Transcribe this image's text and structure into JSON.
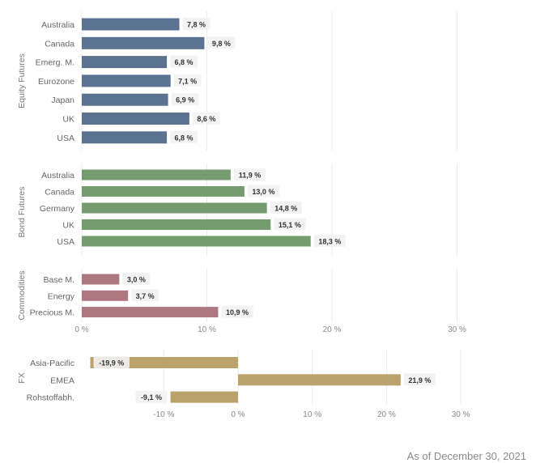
{
  "footnote": "As of December 30, 2021",
  "chart_data": [
    {
      "type": "bar",
      "orientation": "horizontal",
      "group_label": "Equity Futures",
      "color": "#5b7291",
      "categories": [
        "Australia",
        "Canada",
        "Emerg. M.",
        "Eurozone",
        "Japan",
        "UK",
        "USA"
      ],
      "values": [
        7.8,
        9.8,
        6.8,
        7.1,
        6.9,
        8.6,
        6.8
      ],
      "value_labels": [
        "7,8 %",
        "9,8 %",
        "6,8 %",
        "7,1 %",
        "6,9 %",
        "8,6 %",
        "6,8 %"
      ],
      "xlim": [
        0,
        30
      ],
      "grid": true
    },
    {
      "type": "bar",
      "orientation": "horizontal",
      "group_label": "Bond Futures",
      "color": "#759c6e",
      "categories": [
        "Australia",
        "Canada",
        "Germany",
        "UK",
        "USA"
      ],
      "values": [
        11.9,
        13.0,
        14.8,
        15.1,
        18.3
      ],
      "value_labels": [
        "11,9 %",
        "13,0 %",
        "14,8 %",
        "15,1 %",
        "18,3 %"
      ],
      "xlim": [
        0,
        30
      ],
      "grid": true
    },
    {
      "type": "bar",
      "orientation": "horizontal",
      "group_label": "Commodities",
      "color": "#ad7880",
      "categories": [
        "Base M.",
        "Energy",
        "Precious M."
      ],
      "values": [
        3.0,
        3.7,
        10.9
      ],
      "value_labels": [
        "3,0 %",
        "3,7 %",
        "10,9 %"
      ],
      "xlim": [
        0,
        30
      ],
      "xticks": [
        0,
        10,
        20,
        30
      ],
      "xtick_labels": [
        "0 %",
        "10 %",
        "20 %",
        "30 %"
      ],
      "grid": true
    },
    {
      "type": "bar",
      "orientation": "horizontal",
      "group_label": "FX",
      "color": "#bba26d",
      "categories": [
        "Asia-Pacific",
        "EMEA",
        "Rohstoffabh."
      ],
      "values": [
        -19.9,
        21.9,
        -9.1
      ],
      "value_labels": [
        "-19,9 %",
        "21,9 %",
        "-9,1 %"
      ],
      "xlim": [
        -20,
        30
      ],
      "xticks": [
        -10,
        0,
        10,
        20,
        30
      ],
      "xtick_labels": [
        "-10 %",
        "0 %",
        "10 %",
        "20 %",
        "30 %"
      ],
      "grid": true
    }
  ]
}
